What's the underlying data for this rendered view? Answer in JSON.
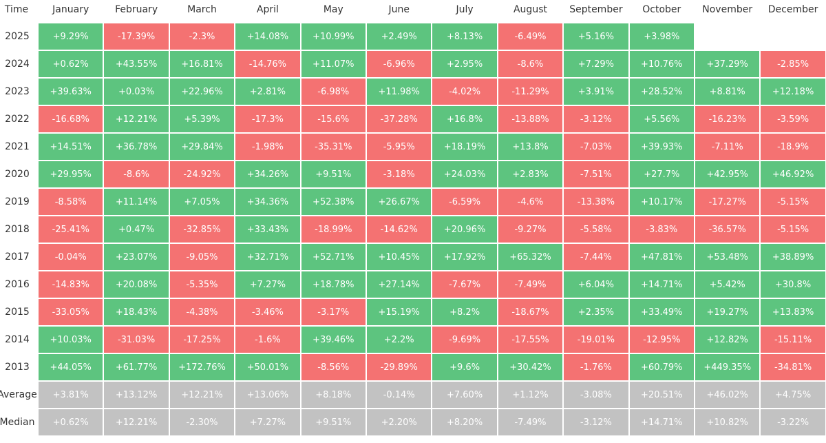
{
  "table": {
    "header": [
      "Time",
      "January",
      "February",
      "March",
      "April",
      "May",
      "June",
      "July",
      "August",
      "September",
      "October",
      "November",
      "December"
    ],
    "rows": [
      {
        "label": "2025",
        "cells": [
          "+9.29%",
          "-17.39%",
          "-2.3%",
          "+14.08%",
          "+10.99%",
          "+2.49%",
          "+8.13%",
          "-6.49%",
          "+5.16%",
          "+3.98%"
        ]
      },
      {
        "label": "2024",
        "cells": [
          "+0.62%",
          "+43.55%",
          "+16.81%",
          "-14.76%",
          "+11.07%",
          "-6.96%",
          "+2.95%",
          "-8.6%",
          "+7.29%",
          "+10.76%",
          "+37.29%",
          "-2.85%"
        ]
      },
      {
        "label": "2023",
        "cells": [
          "+39.63%",
          "+0.03%",
          "+22.96%",
          "+2.81%",
          "-6.98%",
          "+11.98%",
          "-4.02%",
          "-11.29%",
          "+3.91%",
          "+28.52%",
          "+8.81%",
          "+12.18%"
        ]
      },
      {
        "label": "2022",
        "cells": [
          "-16.68%",
          "+12.21%",
          "+5.39%",
          "-17.3%",
          "-15.6%",
          "-37.28%",
          "+16.8%",
          "-13.88%",
          "-3.12%",
          "+5.56%",
          "-16.23%",
          "-3.59%"
        ]
      },
      {
        "label": "2021",
        "cells": [
          "+14.51%",
          "+36.78%",
          "+29.84%",
          "-1.98%",
          "-35.31%",
          "-5.95%",
          "+18.19%",
          "+13.8%",
          "-7.03%",
          "+39.93%",
          "-7.11%",
          "-18.9%"
        ]
      },
      {
        "label": "2020",
        "cells": [
          "+29.95%",
          "-8.6%",
          "-24.92%",
          "+34.26%",
          "+9.51%",
          "-3.18%",
          "+24.03%",
          "+2.83%",
          "-7.51%",
          "+27.7%",
          "+42.95%",
          "+46.92%"
        ]
      },
      {
        "label": "2019",
        "cells": [
          "-8.58%",
          "+11.14%",
          "+7.05%",
          "+34.36%",
          "+52.38%",
          "+26.67%",
          "-6.59%",
          "-4.6%",
          "-13.38%",
          "+10.17%",
          "-17.27%",
          "-5.15%"
        ]
      },
      {
        "label": "2018",
        "cells": [
          "-25.41%",
          "+0.47%",
          "-32.85%",
          "+33.43%",
          "-18.99%",
          "-14.62%",
          "+20.96%",
          "-9.27%",
          "-5.58%",
          "-3.83%",
          "-36.57%",
          "-5.15%"
        ]
      },
      {
        "label": "2017",
        "cells": [
          "-0.04%",
          "+23.07%",
          "-9.05%",
          "+32.71%",
          "+52.71%",
          "+10.45%",
          "+17.92%",
          "+65.32%",
          "-7.44%",
          "+47.81%",
          "+53.48%",
          "+38.89%"
        ]
      },
      {
        "label": "2016",
        "cells": [
          "-14.83%",
          "+20.08%",
          "-5.35%",
          "+7.27%",
          "+18.78%",
          "+27.14%",
          "-7.67%",
          "-7.49%",
          "+6.04%",
          "+14.71%",
          "+5.42%",
          "+30.8%"
        ]
      },
      {
        "label": "2015",
        "cells": [
          "-33.05%",
          "+18.43%",
          "-4.38%",
          "-3.46%",
          "-3.17%",
          "+15.19%",
          "+8.2%",
          "-18.67%",
          "+2.35%",
          "+33.49%",
          "+19.27%",
          "+13.83%"
        ]
      },
      {
        "label": "2014",
        "cells": [
          "+10.03%",
          "-31.03%",
          "-17.25%",
          "-1.6%",
          "+39.46%",
          "+2.2%",
          "-9.69%",
          "-17.55%",
          "-19.01%",
          "-12.95%",
          "+12.82%",
          "-15.11%"
        ]
      },
      {
        "label": "2013",
        "cells": [
          "+44.05%",
          "+61.77%",
          "+172.76%",
          "+50.01%",
          "-8.56%",
          "-29.89%",
          "+9.6%",
          "+30.42%",
          "-1.76%",
          "+60.79%",
          "+449.35%",
          "-34.81%"
        ]
      }
    ],
    "summary_rows": [
      {
        "label": "Average",
        "cells": [
          "+3.81%",
          "+13.12%",
          "+12.21%",
          "+13.06%",
          "+8.18%",
          "-0.14%",
          "+7.60%",
          "+1.12%",
          "-3.08%",
          "+20.51%",
          "+46.02%",
          "+4.75%"
        ]
      },
      {
        "label": "Median",
        "cells": [
          "+0.62%",
          "+12.21%",
          "-2.30%",
          "+7.27%",
          "+9.51%",
          "+2.20%",
          "+8.20%",
          "-7.49%",
          "-3.12%",
          "+14.71%",
          "+10.82%",
          "-3.22%"
        ]
      }
    ],
    "colors": {
      "positive": "#5dc47f",
      "negative": "#f47272",
      "summary": "#c2c2c2"
    }
  }
}
